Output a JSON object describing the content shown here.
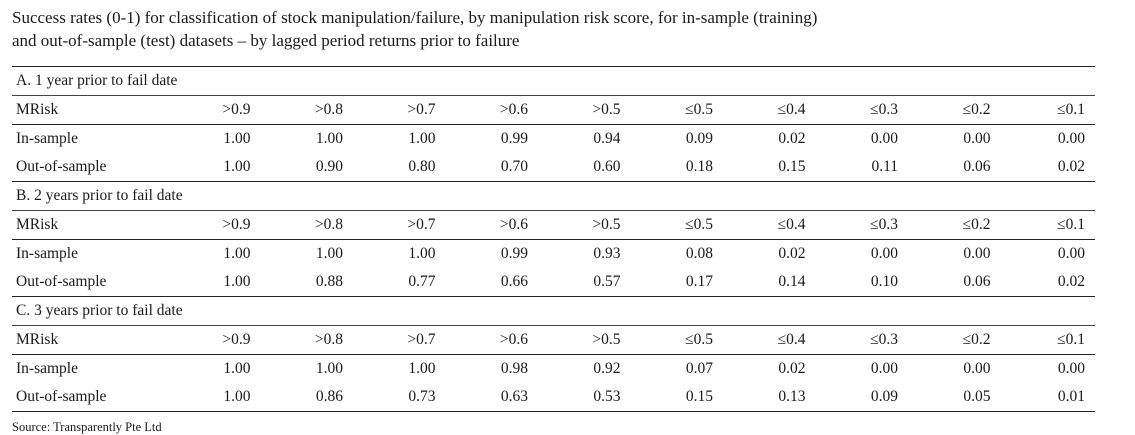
{
  "caption": {
    "line1": "Success rates (0-1) for classification of stock manipulation/failure, by manipulation risk score, for in-sample (training)",
    "line2": "and out-of-sample (test) datasets – by lagged period returns prior to failure"
  },
  "columns": [
    "MRisk",
    ">0.9",
    ">0.8",
    ">0.7",
    ">0.6",
    ">0.5",
    "≤0.5",
    "≤0.4",
    "≤0.3",
    "≤0.2",
    "≤0.1"
  ],
  "sections": [
    {
      "title": "A. 1 year prior to fail date",
      "rows": [
        {
          "label": "In-sample",
          "values": [
            "1.00",
            "1.00",
            "1.00",
            "0.99",
            "0.94",
            "0.09",
            "0.02",
            "0.00",
            "0.00",
            "0.00"
          ]
        },
        {
          "label": "Out-of-sample",
          "values": [
            "1.00",
            "0.90",
            "0.80",
            "0.70",
            "0.60",
            "0.18",
            "0.15",
            "0.11",
            "0.06",
            "0.02"
          ]
        }
      ]
    },
    {
      "title": "B. 2 years prior to fail date",
      "rows": [
        {
          "label": "In-sample",
          "values": [
            "1.00",
            "1.00",
            "1.00",
            "0.99",
            "0.93",
            "0.08",
            "0.02",
            "0.00",
            "0.00",
            "0.00"
          ]
        },
        {
          "label": "Out-of-sample",
          "values": [
            "1.00",
            "0.88",
            "0.77",
            "0.66",
            "0.57",
            "0.17",
            "0.14",
            "0.10",
            "0.06",
            "0.02"
          ]
        }
      ]
    },
    {
      "title": "C. 3 years prior to fail date",
      "rows": [
        {
          "label": "In-sample",
          "values": [
            "1.00",
            "1.00",
            "1.00",
            "0.98",
            "0.92",
            "0.07",
            "0.02",
            "0.00",
            "0.00",
            "0.00"
          ]
        },
        {
          "label": "Out-of-sample",
          "values": [
            "1.00",
            "0.86",
            "0.73",
            "0.63",
            "0.53",
            "0.15",
            "0.13",
            "0.09",
            "0.05",
            "0.01"
          ]
        }
      ]
    }
  ],
  "source": "Source: Transparently Pte Ltd"
}
